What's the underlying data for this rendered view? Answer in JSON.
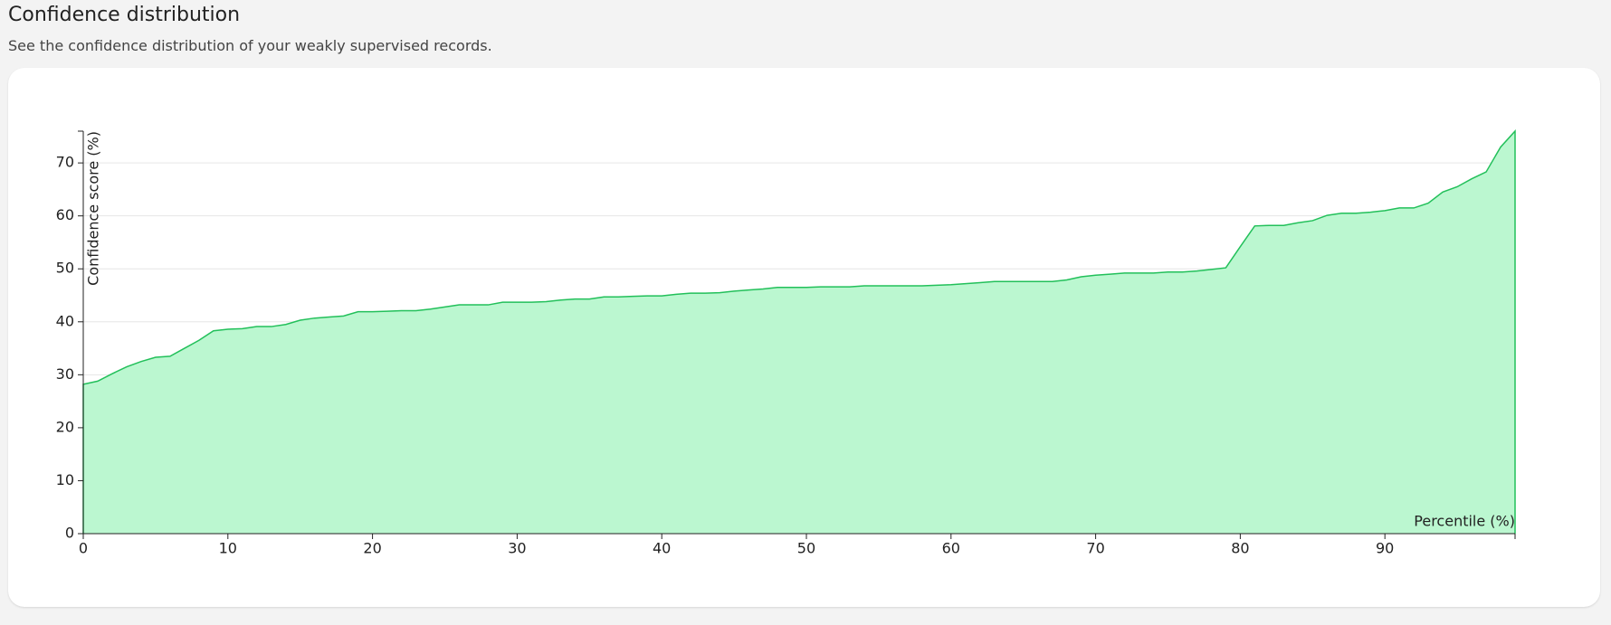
{
  "chart_data": {
    "type": "area",
    "title": "Confidence distribution",
    "subtitle": "See the confidence distribution of your weakly supervised records.",
    "x_label": "Percentile (%)",
    "y_label": "Confidence score (%)",
    "x": [
      0,
      1,
      2,
      3,
      4,
      5,
      6,
      7,
      8,
      9,
      10,
      11,
      12,
      13,
      14,
      15,
      16,
      17,
      18,
      19,
      20,
      21,
      22,
      23,
      24,
      25,
      26,
      27,
      28,
      29,
      30,
      31,
      32,
      33,
      34,
      35,
      36,
      37,
      38,
      39,
      40,
      41,
      42,
      43,
      44,
      45,
      46,
      47,
      48,
      49,
      50,
      51,
      52,
      53,
      54,
      55,
      56,
      57,
      58,
      59,
      60,
      61,
      62,
      63,
      64,
      65,
      66,
      67,
      68,
      69,
      70,
      71,
      72,
      73,
      74,
      75,
      76,
      77,
      78,
      79,
      80,
      81,
      82,
      83,
      84,
      85,
      86,
      87,
      88,
      89,
      90,
      91,
      92,
      93,
      94,
      95,
      96,
      97,
      98,
      99
    ],
    "values": [
      28.2,
      28.8,
      30.2,
      31.5,
      32.5,
      33.3,
      33.5,
      35,
      36.5,
      38.3,
      38.6,
      38.7,
      39.1,
      39.1,
      39.5,
      40.3,
      40.7,
      40.9,
      41.1,
      41.9,
      41.9,
      42,
      42.1,
      42.1,
      42.4,
      42.8,
      43.2,
      43.2,
      43.2,
      43.7,
      43.7,
      43.7,
      43.8,
      44.1,
      44.3,
      44.3,
      44.7,
      44.7,
      44.8,
      44.9,
      44.9,
      45.2,
      45.4,
      45.4,
      45.5,
      45.8,
      46,
      46.2,
      46.5,
      46.5,
      46.5,
      46.6,
      46.6,
      46.6,
      46.8,
      46.8,
      46.8,
      46.8,
      46.8,
      46.9,
      47,
      47.2,
      47.4,
      47.6,
      47.6,
      47.6,
      47.6,
      47.6,
      47.9,
      48.5,
      48.8,
      49,
      49.2,
      49.2,
      49.2,
      49.4,
      49.4,
      49.6,
      49.9,
      50.2,
      54.2,
      58.1,
      58.2,
      58.2,
      58.7,
      59.1,
      60.1,
      60.5,
      60.5,
      60.7,
      61,
      61.5,
      61.5,
      62.4,
      64.5,
      65.5,
      67,
      68.3,
      73,
      76
    ],
    "color": "#22c05a",
    "fill_color": "#bbf7d0",
    "xlim": [
      0,
      99
    ],
    "xticks": [
      0,
      10,
      20,
      30,
      40,
      50,
      60,
      70,
      80,
      90
    ],
    "ylim": [
      0,
      76
    ],
    "yticks": [
      0,
      10,
      20,
      30,
      40,
      50,
      60,
      70
    ],
    "grid": true
  }
}
